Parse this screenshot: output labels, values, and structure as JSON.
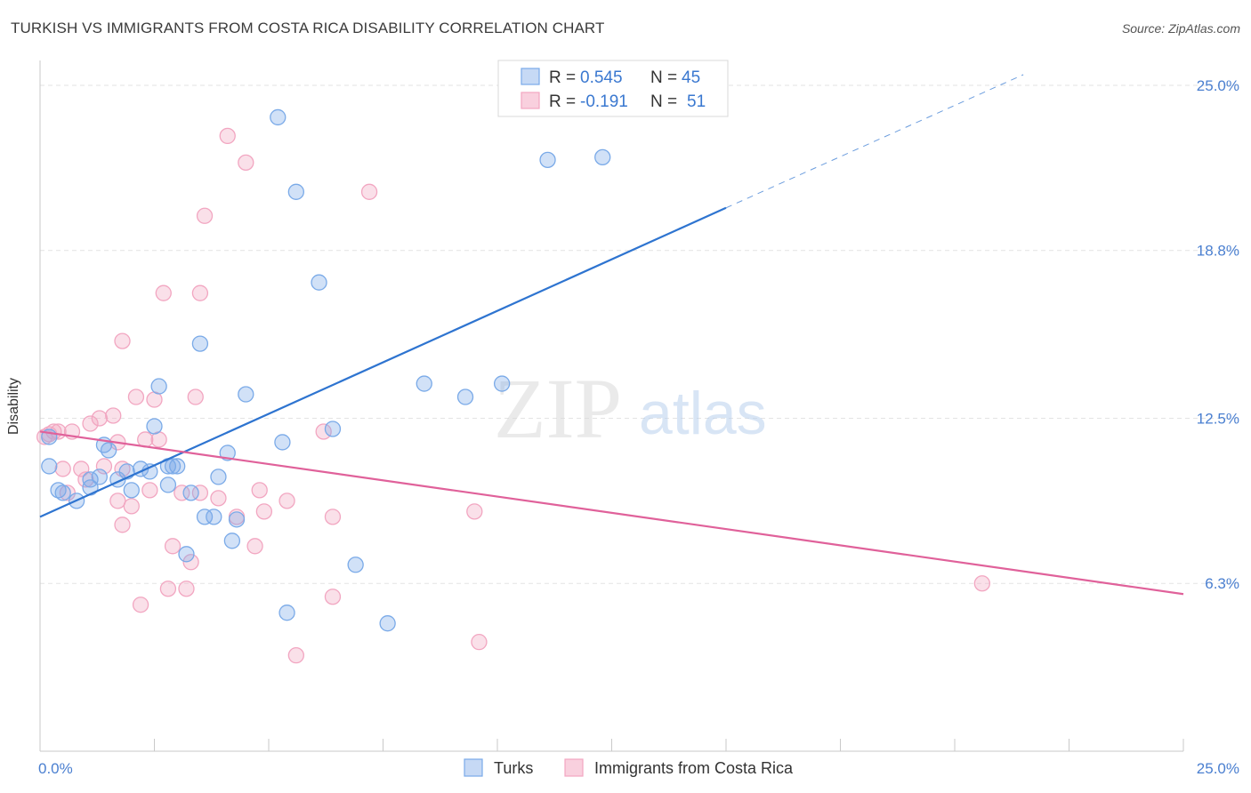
{
  "header": {
    "title": "TURKISH VS IMMIGRANTS FROM COSTA RICA DISABILITY CORRELATION CHART",
    "source": "Source: ZipAtlas.com"
  },
  "watermark": {
    "zip": "ZIP",
    "atlas": "atlas"
  },
  "chart_data": {
    "type": "scatter",
    "title": "TURKISH VS IMMIGRANTS FROM COSTA RICA DISABILITY CORRELATION CHART",
    "xlabel": "",
    "ylabel": "Disability",
    "xlim": [
      0,
      25
    ],
    "ylim": [
      0,
      25.6
    ],
    "x_tick_labels": [
      "0.0%",
      "25.0%"
    ],
    "y_ticks": [
      6.3,
      12.5,
      18.8,
      25.0
    ],
    "y_tick_labels": [
      "6.3%",
      "12.5%",
      "18.8%",
      "25.0%"
    ],
    "grid": true,
    "legend_placement": "top-center",
    "stats": [
      {
        "r_label": "R =",
        "r_value": "0.545",
        "n_label": "N =",
        "n_value": "45"
      },
      {
        "r_label": "R =",
        "r_value": "-0.191",
        "n_label": "N =",
        "n_value": "51"
      }
    ],
    "series": [
      {
        "name": "Turks",
        "color": "#7aaae8",
        "line_color": "#2e74d0",
        "trend": {
          "x0": 0,
          "y0": 8.8,
          "x1": 15,
          "y1": 20.4,
          "dash_to_x": 21.5,
          "dash_to_y": 25.4
        },
        "points": [
          [
            0.2,
            11.8
          ],
          [
            0.2,
            10.7
          ],
          [
            0.4,
            9.8
          ],
          [
            0.5,
            9.7
          ],
          [
            0.8,
            9.4
          ],
          [
            1.1,
            10.2
          ],
          [
            1.1,
            9.9
          ],
          [
            1.3,
            10.3
          ],
          [
            1.4,
            11.5
          ],
          [
            1.5,
            11.3
          ],
          [
            1.7,
            10.2
          ],
          [
            1.9,
            10.5
          ],
          [
            2.0,
            9.8
          ],
          [
            2.2,
            10.6
          ],
          [
            2.4,
            10.5
          ],
          [
            2.5,
            12.2
          ],
          [
            2.6,
            13.7
          ],
          [
            2.8,
            10.0
          ],
          [
            2.9,
            10.7
          ],
          [
            3.0,
            10.7
          ],
          [
            3.2,
            7.4
          ],
          [
            3.3,
            9.7
          ],
          [
            3.5,
            15.3
          ],
          [
            3.6,
            8.8
          ],
          [
            3.8,
            8.8
          ],
          [
            3.9,
            10.3
          ],
          [
            4.1,
            11.2
          ],
          [
            4.2,
            7.9
          ],
          [
            4.3,
            8.7
          ],
          [
            4.5,
            13.4
          ],
          [
            5.2,
            23.8
          ],
          [
            5.3,
            11.6
          ],
          [
            5.4,
            5.2
          ],
          [
            5.6,
            21.0
          ],
          [
            6.1,
            17.6
          ],
          [
            6.4,
            12.1
          ],
          [
            6.9,
            7.0
          ],
          [
            7.6,
            4.8
          ],
          [
            8.4,
            13.8
          ],
          [
            9.3,
            13.3
          ],
          [
            10.1,
            13.8
          ],
          [
            11.1,
            22.2
          ],
          [
            11.9,
            24.3
          ],
          [
            12.3,
            22.3
          ],
          [
            2.8,
            10.7
          ]
        ]
      },
      {
        "name": "Immigrants from Costa Rica",
        "color": "#f2a6c1",
        "line_color": "#e0619a",
        "trend": {
          "x0": 0,
          "y0": 12.0,
          "x1": 25,
          "y1": 5.9
        },
        "points": [
          [
            0.1,
            11.8
          ],
          [
            0.2,
            11.9
          ],
          [
            0.3,
            12.0
          ],
          [
            0.4,
            12.0
          ],
          [
            0.5,
            10.6
          ],
          [
            0.6,
            9.7
          ],
          [
            0.7,
            12.0
          ],
          [
            0.9,
            10.6
          ],
          [
            1.0,
            10.2
          ],
          [
            1.1,
            12.3
          ],
          [
            1.3,
            12.5
          ],
          [
            1.4,
            10.7
          ],
          [
            1.6,
            12.6
          ],
          [
            1.7,
            11.6
          ],
          [
            1.8,
            10.6
          ],
          [
            1.8,
            15.4
          ],
          [
            1.7,
            9.4
          ],
          [
            1.8,
            8.5
          ],
          [
            2.0,
            9.2
          ],
          [
            2.1,
            13.3
          ],
          [
            2.2,
            5.5
          ],
          [
            2.3,
            11.7
          ],
          [
            2.4,
            9.8
          ],
          [
            2.5,
            13.2
          ],
          [
            2.6,
            11.7
          ],
          [
            2.7,
            17.2
          ],
          [
            2.8,
            6.1
          ],
          [
            2.9,
            7.7
          ],
          [
            3.1,
            9.7
          ],
          [
            3.2,
            6.1
          ],
          [
            3.3,
            7.1
          ],
          [
            3.4,
            13.3
          ],
          [
            3.5,
            9.7
          ],
          [
            3.5,
            17.2
          ],
          [
            3.6,
            20.1
          ],
          [
            3.9,
            9.5
          ],
          [
            4.1,
            23.1
          ],
          [
            4.3,
            8.8
          ],
          [
            4.5,
            22.1
          ],
          [
            4.7,
            7.7
          ],
          [
            4.8,
            9.8
          ],
          [
            4.9,
            9.0
          ],
          [
            5.4,
            9.4
          ],
          [
            5.6,
            3.6
          ],
          [
            6.2,
            12.0
          ],
          [
            6.4,
            8.8
          ],
          [
            6.4,
            5.8
          ],
          [
            7.2,
            21.0
          ],
          [
            9.5,
            9.0
          ],
          [
            9.6,
            4.1
          ],
          [
            20.6,
            6.3
          ]
        ]
      }
    ]
  }
}
